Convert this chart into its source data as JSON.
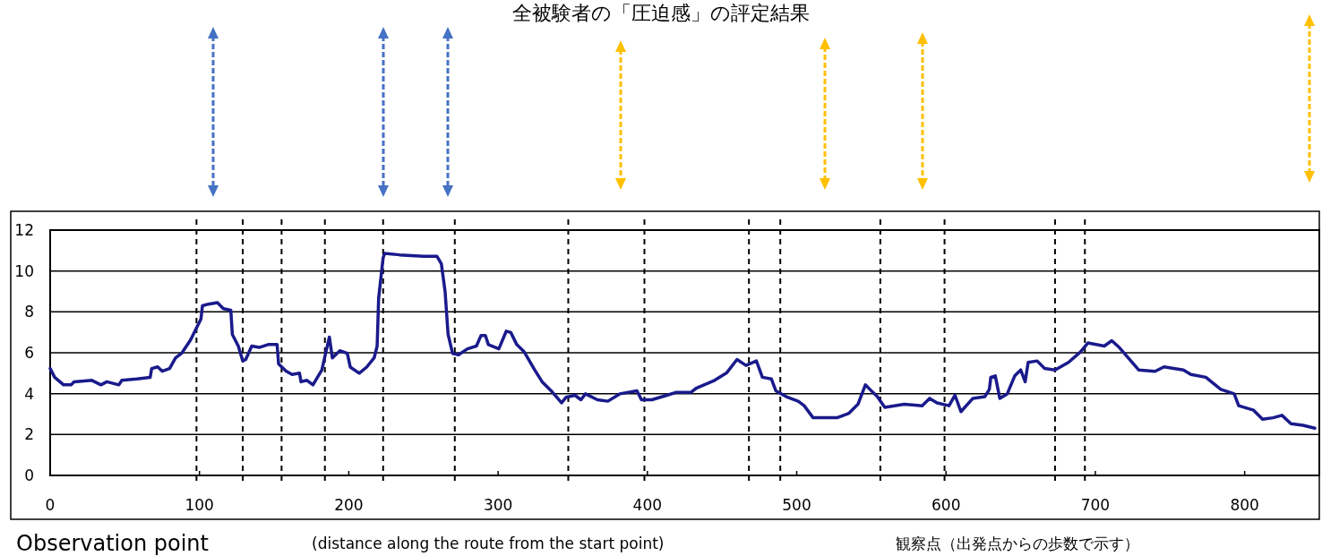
{
  "chart_data": {
    "type": "line",
    "title": "全被験者の「圧迫感」の評定結果",
    "xlabel": "Observation point",
    "annotations": [
      "(distance along the route from the start point)",
      "観察点（出発点からの歩数で示す）"
    ],
    "xlim": [
      0,
      850
    ],
    "xticks": [
      0,
      100,
      200,
      300,
      400,
      500,
      600,
      700,
      800
    ],
    "ylim": [
      0,
      12
    ],
    "yticks": [
      0,
      2,
      4,
      6,
      8,
      10,
      12
    ],
    "grid": "y",
    "marker": "none",
    "line_style": "solid",
    "ref_lines": [
      {
        "axis": "x",
        "value": 98,
        "label": null,
        "color": "#000000",
        "line_style": "dashed"
      },
      {
        "axis": "x",
        "value": 129,
        "label": null,
        "color": "#000000",
        "line_style": "dashed"
      },
      {
        "axis": "x",
        "value": 155,
        "label": null,
        "color": "#000000",
        "line_style": "dashed"
      },
      {
        "axis": "x",
        "value": 184,
        "label": null,
        "color": "#000000",
        "line_style": "dashed"
      },
      {
        "axis": "x",
        "value": 223,
        "label": null,
        "color": "#000000",
        "line_style": "dashed"
      },
      {
        "axis": "x",
        "value": 271,
        "label": null,
        "color": "#000000",
        "line_style": "dashed"
      },
      {
        "axis": "x",
        "value": 347,
        "label": null,
        "color": "#000000",
        "line_style": "dashed"
      },
      {
        "axis": "x",
        "value": 398,
        "label": null,
        "color": "#000000",
        "line_style": "dashed"
      },
      {
        "axis": "x",
        "value": 468,
        "label": null,
        "color": "#000000",
        "line_style": "dashed"
      },
      {
        "axis": "x",
        "value": 489,
        "label": null,
        "color": "#000000",
        "line_style": "dashed"
      },
      {
        "axis": "x",
        "value": 556,
        "label": null,
        "color": "#000000",
        "line_style": "dashed"
      },
      {
        "axis": "x",
        "value": 599,
        "label": null,
        "color": "#000000",
        "line_style": "dashed"
      },
      {
        "axis": "x",
        "value": 673,
        "label": null,
        "color": "#000000",
        "line_style": "dashed"
      },
      {
        "axis": "x",
        "value": 693,
        "label": null,
        "color": "#000000",
        "line_style": "dashed"
      }
    ],
    "series": [
      {
        "color": "#1a1a8c",
        "x": [
          0,
          3,
          9,
          14,
          16,
          28,
          34,
          38,
          46,
          48,
          58,
          67,
          68,
          72,
          75,
          80,
          84,
          88,
          94,
          101,
          102,
          106,
          112,
          116,
          121,
          122,
          126,
          129,
          131,
          135,
          140,
          146,
          152,
          153,
          158,
          162,
          167,
          168,
          172,
          176,
          182,
          184,
          187,
          189,
          194,
          199,
          201,
          207,
          212,
          217,
          219,
          220,
          223,
          224,
          234,
          250,
          259,
          262,
          264.5,
          266.5,
          269.5,
          273.5,
          279.5,
          285.5,
          288.5,
          291.5,
          293.5,
          300.5,
          305.5,
          308.5,
          312.5,
          317.5,
          324.5,
          329.5,
          335.5,
          342.5,
          345.5,
          351.5,
          355.5,
          358.5,
          366.5,
          373.5,
          381.5,
          393,
          396,
          403,
          413,
          419,
          429,
          433,
          445,
          453,
          460,
          466,
          473,
          477,
          483,
          486,
          493,
          501,
          505,
          511,
          527,
          535,
          541,
          546,
          549,
          554,
          559,
          572,
          584,
          589,
          594,
          602,
          606,
          610,
          618,
          626,
          629,
          630,
          633,
          636,
          641,
          646,
          650,
          653,
          655,
          661,
          666,
          673,
          682,
          690,
          695,
          706,
          711,
          716,
          722,
          729,
          740,
          746,
          759,
          764,
          774,
          784,
          793,
          796,
          806,
          812,
          819,
          825,
          831,
          839,
          847
        ],
        "values": [
          5.23,
          4.8,
          4.43,
          4.43,
          4.58,
          4.65,
          4.43,
          4.58,
          4.43,
          4.65,
          4.72,
          4.8,
          5.23,
          5.31,
          5.1,
          5.23,
          5.75,
          5.97,
          6.62,
          7.65,
          8.3,
          8.38,
          8.45,
          8.16,
          8.08,
          6.9,
          6.33,
          5.6,
          5.67,
          6.33,
          6.26,
          6.4,
          6.4,
          5.45,
          5.1,
          4.94,
          5.0,
          4.58,
          4.65,
          4.43,
          5.16,
          5.82,
          6.77,
          5.75,
          6.1,
          5.97,
          5.3,
          5.0,
          5.3,
          5.75,
          6.33,
          8.67,
          10.64,
          10.86,
          10.79,
          10.72,
          10.72,
          10.35,
          9.0,
          6.9,
          5.97,
          5.9,
          6.19,
          6.33,
          6.84,
          6.84,
          6.4,
          6.19,
          7.06,
          6.99,
          6.4,
          6.04,
          5.16,
          4.58,
          4.14,
          3.55,
          3.82,
          3.92,
          3.7,
          3.99,
          3.7,
          3.63,
          3.99,
          4.14,
          3.7,
          3.7,
          3.92,
          4.06,
          4.06,
          4.28,
          4.65,
          5.01,
          5.67,
          5.38,
          5.6,
          4.8,
          4.72,
          4.14,
          3.85,
          3.63,
          3.41,
          2.82,
          2.82,
          3.04,
          3.48,
          4.43,
          4.21,
          3.85,
          3.33,
          3.48,
          3.41,
          3.77,
          3.55,
          3.41,
          3.92,
          3.12,
          3.77,
          3.85,
          4.21,
          4.8,
          4.87,
          3.77,
          3.99,
          4.87,
          5.16,
          4.58,
          5.53,
          5.6,
          5.23,
          5.16,
          5.53,
          6.04,
          6.48,
          6.33,
          6.59,
          6.26,
          5.75,
          5.16,
          5.09,
          5.31,
          5.16,
          4.94,
          4.8,
          4.21,
          3.99,
          3.41,
          3.19,
          2.75,
          2.82,
          2.94,
          2.53,
          2.45,
          2.31
        ]
      }
    ]
  }
}
